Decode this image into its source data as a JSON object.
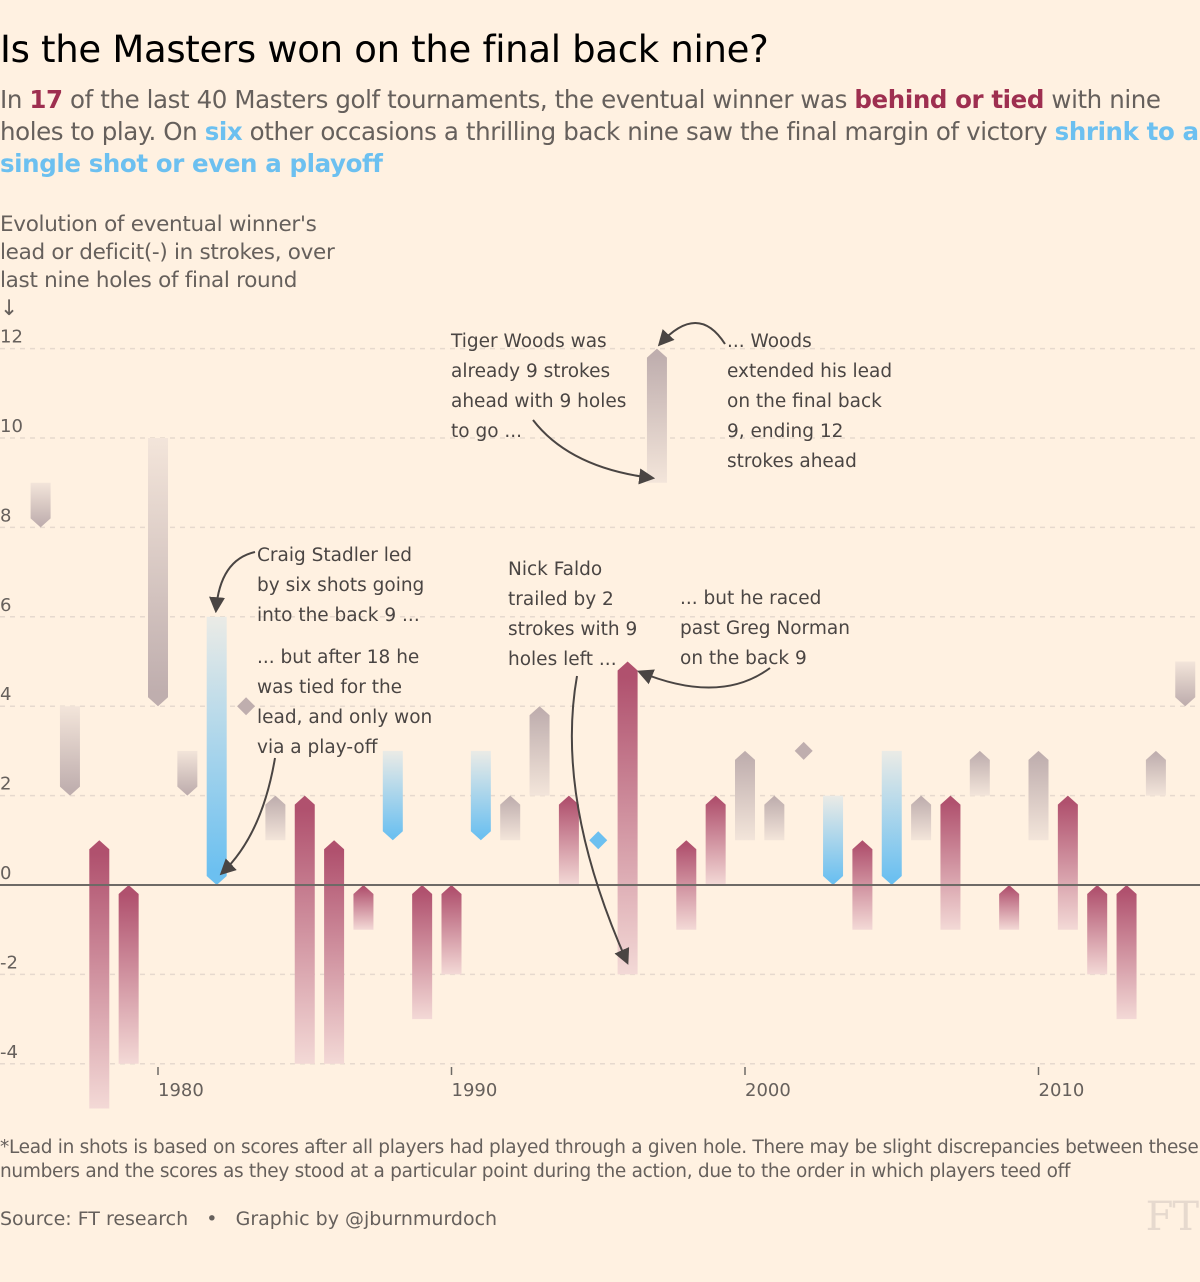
{
  "header": {
    "title": "Is the Masters won on the final back nine?",
    "standfirst": {
      "parts": [
        {
          "text": "In ",
          "style": "plain"
        },
        {
          "text": "17",
          "style": "red"
        },
        {
          "text": " of the last 40 Masters golf tournaments, the eventual winner was ",
          "style": "plain"
        },
        {
          "text": "behind or tied",
          "style": "red"
        },
        {
          "text": " with nine holes to play. On ",
          "style": "plain"
        },
        {
          "text": "six",
          "style": "blue"
        },
        {
          "text": " other occasions a thrilling back nine saw the final margin of victory ",
          "style": "plain"
        },
        {
          "text": "shrink to a single shot or even a playoff",
          "style": "blue"
        }
      ]
    }
  },
  "colors": {
    "background": "#fff1e1",
    "red": "#b0516e",
    "red_text": "#9e2f50",
    "blue": "#6cc0f0",
    "grey": "#bfaeae",
    "zero_line": "#6e6a66",
    "grid": "#e6d9ce",
    "annotation": "#4a4543"
  },
  "chart_data": {
    "type": "arrow-range",
    "title": "Is the Masters won on the final back nine?",
    "ylabel": "Evolution of eventual winner's\nlead or deficit(-) in strokes, over\nlast nine holes of final round\n↓",
    "xlabel": "",
    "ylim": [
      -4,
      12
    ],
    "yticks": [
      12,
      10,
      8,
      6,
      4,
      2,
      0,
      -2,
      -4
    ],
    "ytick_labels": [
      "12",
      "10",
      "8",
      "6",
      "4",
      "2",
      "0",
      "-2",
      "-4"
    ],
    "xlim": [
      1975.6,
      2015.5
    ],
    "xticks": [
      1980,
      1990,
      2000,
      2010
    ],
    "xtick_labels": [
      "1980",
      "1990",
      "2000",
      "2010"
    ],
    "grid": true,
    "legend": "none",
    "categories_meaning": {
      "red": "behind or tied with nine holes to play",
      "blue": "margin shrank to a single shot or a playoff",
      "grey": "other"
    },
    "series": [
      {
        "year": 1976,
        "start": 9,
        "end": 8,
        "category": "grey"
      },
      {
        "year": 1977,
        "start": 4,
        "end": 2,
        "category": "grey"
      },
      {
        "year": 1978,
        "start": -5,
        "end": 1,
        "category": "red"
      },
      {
        "year": 1979,
        "start": -4,
        "end": 0,
        "category": "red"
      },
      {
        "year": 1980,
        "start": 10,
        "end": 4,
        "category": "grey"
      },
      {
        "year": 1981,
        "start": 3,
        "end": 2,
        "category": "grey"
      },
      {
        "year": 1982,
        "start": 6,
        "end": 0,
        "category": "blue"
      },
      {
        "year": 1983,
        "start": 4,
        "end": 4,
        "category": "grey"
      },
      {
        "year": 1984,
        "start": 1,
        "end": 2,
        "category": "grey"
      },
      {
        "year": 1985,
        "start": -4,
        "end": 2,
        "category": "red"
      },
      {
        "year": 1986,
        "start": -4,
        "end": 1,
        "category": "red"
      },
      {
        "year": 1987,
        "start": -1,
        "end": 0,
        "category": "red"
      },
      {
        "year": 1988,
        "start": 3,
        "end": 1,
        "category": "blue"
      },
      {
        "year": 1989,
        "start": -3,
        "end": 0,
        "category": "red"
      },
      {
        "year": 1990,
        "start": -2,
        "end": 0,
        "category": "red"
      },
      {
        "year": 1991,
        "start": 3,
        "end": 1,
        "category": "blue"
      },
      {
        "year": 1992,
        "start": 1,
        "end": 2,
        "category": "grey"
      },
      {
        "year": 1993,
        "start": 2,
        "end": 4,
        "category": "grey"
      },
      {
        "year": 1994,
        "start": 0,
        "end": 2,
        "category": "red"
      },
      {
        "year": 1995,
        "start": 1,
        "end": 1,
        "category": "blue"
      },
      {
        "year": 1996,
        "start": -2,
        "end": 5,
        "category": "red"
      },
      {
        "year": 1997,
        "start": 9,
        "end": 12,
        "category": "grey"
      },
      {
        "year": 1998,
        "start": -1,
        "end": 1,
        "category": "red"
      },
      {
        "year": 1999,
        "start": 0,
        "end": 2,
        "category": "red"
      },
      {
        "year": 2000,
        "start": 1,
        "end": 3,
        "category": "grey"
      },
      {
        "year": 2001,
        "start": 1,
        "end": 2,
        "category": "grey"
      },
      {
        "year": 2002,
        "start": 3,
        "end": 3,
        "category": "grey"
      },
      {
        "year": 2003,
        "start": 2,
        "end": 0,
        "category": "blue"
      },
      {
        "year": 2004,
        "start": -1,
        "end": 1,
        "category": "red"
      },
      {
        "year": 2005,
        "start": 3,
        "end": 0,
        "category": "blue"
      },
      {
        "year": 2006,
        "start": 1,
        "end": 2,
        "category": "grey"
      },
      {
        "year": 2007,
        "start": -1,
        "end": 2,
        "category": "red"
      },
      {
        "year": 2008,
        "start": 2,
        "end": 3,
        "category": "grey"
      },
      {
        "year": 2009,
        "start": -1,
        "end": 0,
        "category": "red"
      },
      {
        "year": 2010,
        "start": 1,
        "end": 3,
        "category": "grey"
      },
      {
        "year": 2011,
        "start": -1,
        "end": 2,
        "category": "red"
      },
      {
        "year": 2012,
        "start": -2,
        "end": 0,
        "category": "red"
      },
      {
        "year": 2013,
        "start": -3,
        "end": 0,
        "category": "red"
      },
      {
        "year": 2014,
        "start": 2,
        "end": 3,
        "category": "grey"
      },
      {
        "year": 2015,
        "start": 5,
        "end": 4,
        "category": "grey"
      }
    ],
    "annotations": [
      {
        "id": "tiger-before",
        "lines": [
          "Tiger Woods was",
          "already 9 strokes",
          "ahead with 9 holes",
          "to go ..."
        ],
        "anchor": {
          "year": 1997,
          "value": 9
        }
      },
      {
        "id": "tiger-after",
        "lines": [
          "... Woods",
          "extended his lead",
          "on the final back",
          "9, ending 12",
          "strokes ahead"
        ],
        "anchor": {
          "year": 1997,
          "value": 12
        }
      },
      {
        "id": "stadler-before",
        "lines": [
          "Craig Stadler led",
          "by six shots going",
          "into the back 9 ..."
        ],
        "anchor": {
          "year": 1982,
          "value": 6
        }
      },
      {
        "id": "stadler-after",
        "lines": [
          "... but after 18 he",
          "was tied for the",
          "lead, and only won",
          "via a play-off"
        ],
        "anchor": {
          "year": 1982,
          "value": 0
        }
      },
      {
        "id": "faldo-before",
        "lines": [
          "Nick Faldo",
          "trailed by 2",
          "strokes with 9",
          "holes left ..."
        ],
        "anchor": {
          "year": 1996,
          "value": -2
        }
      },
      {
        "id": "faldo-after",
        "lines": [
          "... but he raced",
          "past Greg Norman",
          "on the back 9"
        ],
        "anchor": {
          "year": 1996,
          "value": 5
        }
      }
    ]
  },
  "footer": {
    "footnote": "*Lead in shots is based on scores after all players had played through a given hole. There may be slight discrepancies between these numbers and the scores as they stood at a particular point during the action, due to the order in which players teed off",
    "source": "Source: FT research",
    "separator": "•",
    "credit": "Graphic by @jburnmurdoch",
    "logo": "FT"
  }
}
